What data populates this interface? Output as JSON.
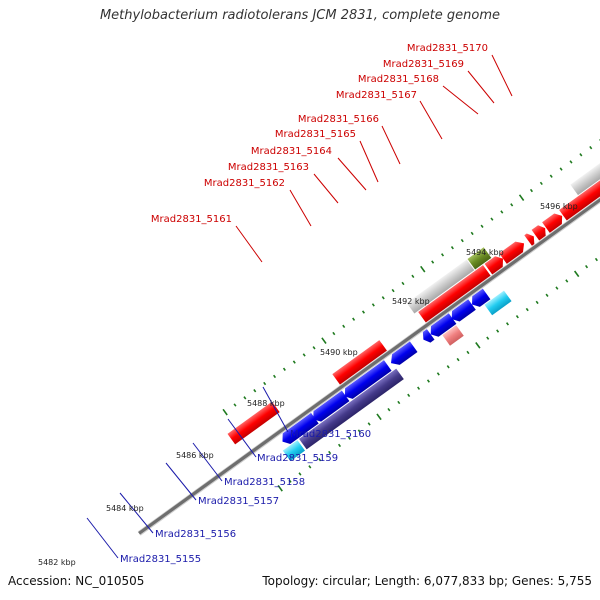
{
  "header": {
    "title": "Methylobacterium radiotolerans JCM 2831, complete genome"
  },
  "footer": {
    "accession": "Accession: NC_010505",
    "summary": "Topology: circular; Length: 6,077,833 bp; Genes: 5,755"
  },
  "colors": {
    "forward": "#ff0000",
    "reverse": "#0000ff",
    "forward_label": "#cc0000",
    "reverse_label": "#1a1aaa",
    "backbone": "#888888",
    "tick": "#1f7a1f"
  },
  "scale_ticks": [
    {
      "label": "5482 kbp"
    },
    {
      "label": "5484 kbp"
    },
    {
      "label": "5486 kbp"
    },
    {
      "label": "5488 kbp"
    },
    {
      "label": "5490 kbp"
    },
    {
      "label": "5492 kbp"
    },
    {
      "label": "5494 kbp"
    },
    {
      "label": "5496 kbp"
    }
  ],
  "forward_genes": [
    {
      "label": "Mrad2831_5161"
    },
    {
      "label": "Mrad2831_5162"
    },
    {
      "label": "Mrad2831_5163"
    },
    {
      "label": "Mrad2831_5164"
    },
    {
      "label": "Mrad2831_5165"
    },
    {
      "label": "Mrad2831_5166"
    },
    {
      "label": "Mrad2831_5167"
    },
    {
      "label": "Mrad2831_5168"
    },
    {
      "label": "Mrad2831_5169"
    },
    {
      "label": "Mrad2831_5170"
    }
  ],
  "reverse_genes": [
    {
      "label": "Mrad2831_5155"
    },
    {
      "label": "Mrad2831_5156"
    },
    {
      "label": "Mrad2831_5157"
    },
    {
      "label": "Mrad2831_5158"
    },
    {
      "label": "Mrad2831_5159"
    },
    {
      "label": "Mrad2831_5160"
    }
  ]
}
